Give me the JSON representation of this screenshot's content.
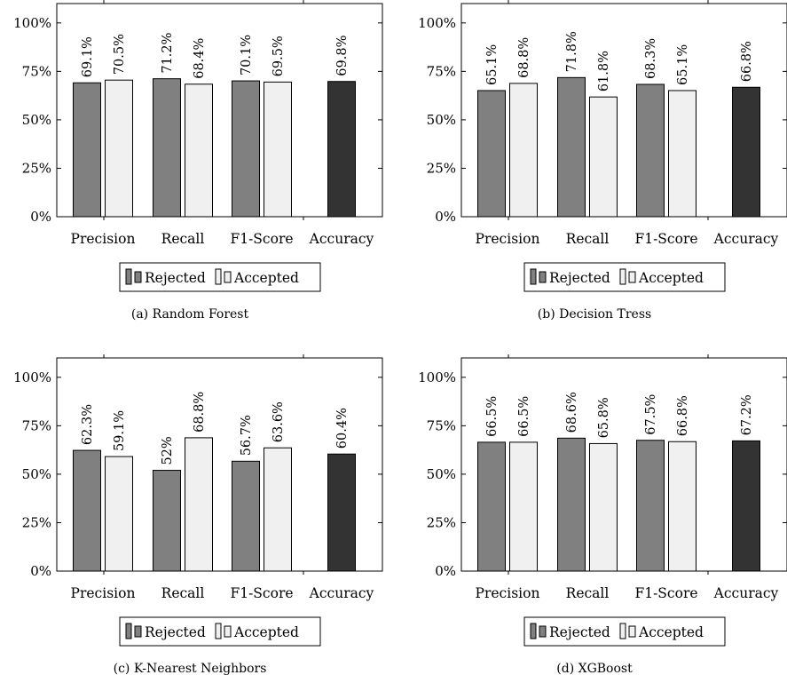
{
  "colors": {
    "rejected": "#808080",
    "accepted": "#f0f0f0",
    "accuracy": "#333333",
    "stroke": "#000000"
  },
  "chart_data": [
    {
      "type": "bar",
      "caption": "(a) Random Forest",
      "categories": [
        "Precision",
        "Recall",
        "F1-Score",
        "Accuracy"
      ],
      "series": [
        {
          "name": "Rejected",
          "values": [
            69.1,
            71.2,
            70.1,
            null
          ],
          "labels": [
            "69.1%",
            "71.2%",
            "70.1%",
            null
          ]
        },
        {
          "name": "Accepted",
          "values": [
            70.5,
            68.4,
            69.5,
            null
          ],
          "labels": [
            "70.5%",
            "68.4%",
            "69.5%",
            null
          ]
        },
        {
          "name": "",
          "values": [
            null,
            null,
            null,
            69.8
          ],
          "labels": [
            null,
            null,
            null,
            "69.8%"
          ]
        }
      ],
      "ylim": [
        0,
        110
      ],
      "yticks": [
        0,
        25,
        50,
        75,
        100
      ],
      "ytick_labels": [
        "0%",
        "25%",
        "50%",
        "75%",
        "100%"
      ],
      "legend": [
        "Rejected",
        "Accepted"
      ],
      "legend_position": "bottom"
    },
    {
      "type": "bar",
      "caption": "(b) Decision Tress",
      "categories": [
        "Precision",
        "Recall",
        "F1-Score",
        "Accuracy"
      ],
      "series": [
        {
          "name": "Rejected",
          "values": [
            65.1,
            71.8,
            68.3,
            null
          ],
          "labels": [
            "65.1%",
            "71.8%",
            "68.3%",
            null
          ]
        },
        {
          "name": "Accepted",
          "values": [
            68.8,
            61.8,
            65.1,
            null
          ],
          "labels": [
            "68.8%",
            "61.8%",
            "65.1%",
            null
          ]
        },
        {
          "name": "",
          "values": [
            null,
            null,
            null,
            66.8
          ],
          "labels": [
            null,
            null,
            null,
            "66.8%"
          ]
        }
      ],
      "ylim": [
        0,
        110
      ],
      "yticks": [
        0,
        25,
        50,
        75,
        100
      ],
      "ytick_labels": [
        "0%",
        "25%",
        "50%",
        "75%",
        "100%"
      ],
      "legend": [
        "Rejected",
        "Accepted"
      ],
      "legend_position": "bottom"
    },
    {
      "type": "bar",
      "caption": "(c) K-Nearest Neighbors",
      "categories": [
        "Precision",
        "Recall",
        "F1-Score",
        "Accuracy"
      ],
      "series": [
        {
          "name": "Rejected",
          "values": [
            62.3,
            52,
            56.7,
            null
          ],
          "labels": [
            "62.3%",
            "52%",
            "56.7%",
            null
          ]
        },
        {
          "name": "Accepted",
          "values": [
            59.1,
            68.8,
            63.6,
            null
          ],
          "labels": [
            "59.1%",
            "68.8%",
            "63.6%",
            null
          ]
        },
        {
          "name": "",
          "values": [
            null,
            null,
            null,
            60.4
          ],
          "labels": [
            null,
            null,
            null,
            "60.4%"
          ]
        }
      ],
      "ylim": [
        0,
        110
      ],
      "yticks": [
        0,
        25,
        50,
        75,
        100
      ],
      "ytick_labels": [
        "0%",
        "25%",
        "50%",
        "75%",
        "100%"
      ],
      "legend": [
        "Rejected",
        "Accepted"
      ],
      "legend_position": "bottom"
    },
    {
      "type": "bar",
      "caption": "(d) XGBoost",
      "categories": [
        "Precision",
        "Recall",
        "F1-Score",
        "Accuracy"
      ],
      "series": [
        {
          "name": "Rejected",
          "values": [
            66.5,
            68.6,
            67.5,
            null
          ],
          "labels": [
            "66.5%",
            "68.6%",
            "67.5%",
            null
          ]
        },
        {
          "name": "Accepted",
          "values": [
            66.5,
            65.8,
            66.8,
            null
          ],
          "labels": [
            "66.5%",
            "65.8%",
            "66.8%",
            null
          ]
        },
        {
          "name": "",
          "values": [
            null,
            null,
            null,
            67.2
          ],
          "labels": [
            null,
            null,
            null,
            "67.2%"
          ]
        }
      ],
      "ylim": [
        0,
        110
      ],
      "yticks": [
        0,
        25,
        50,
        75,
        100
      ],
      "ytick_labels": [
        "0%",
        "25%",
        "50%",
        "75%",
        "100%"
      ],
      "legend": [
        "Rejected",
        "Accepted"
      ],
      "legend_position": "bottom"
    }
  ]
}
